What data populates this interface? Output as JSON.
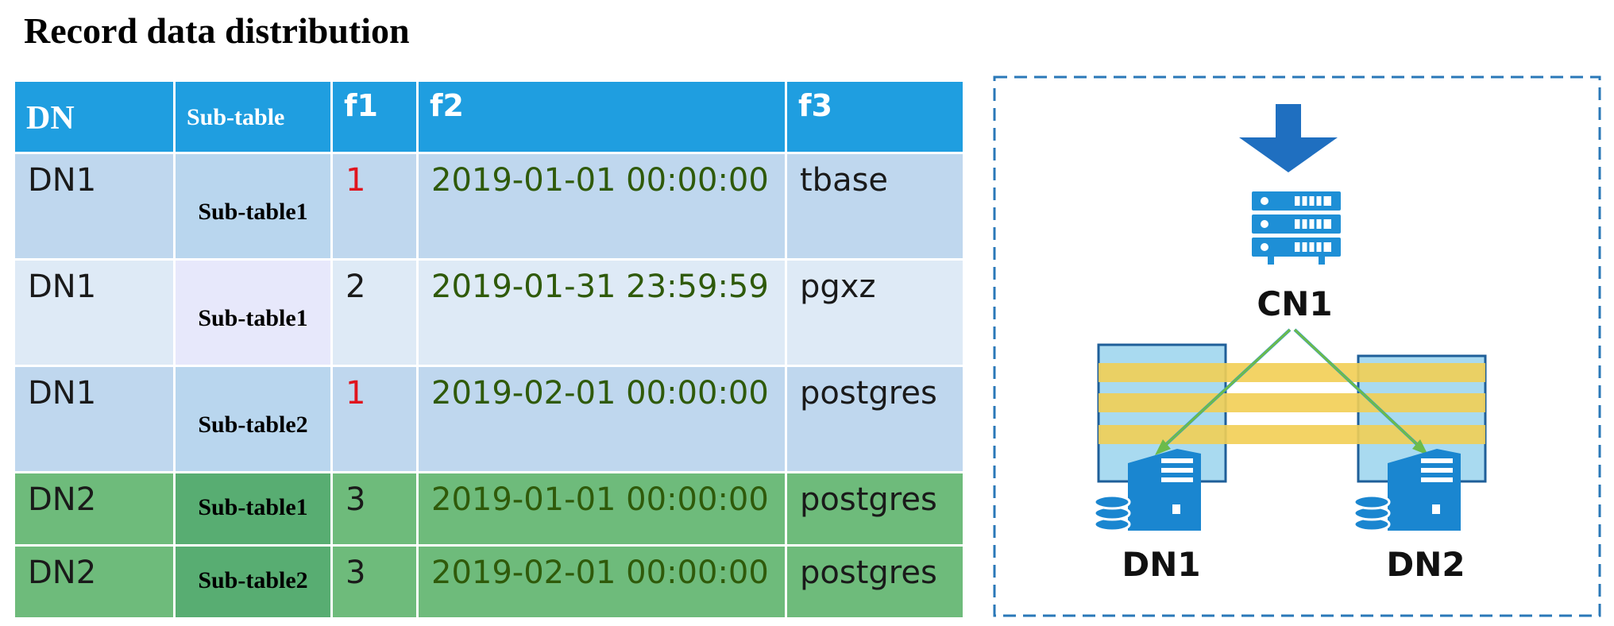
{
  "title": "Record data distribution",
  "table": {
    "headers": [
      "DN",
      "Sub-table",
      "f1",
      "f2",
      "f3"
    ],
    "rows": [
      {
        "dn": "DN1",
        "subtable": "Sub-table1",
        "f1": "1",
        "f2": "2019-01-01 00:00:00",
        "f3": "tbase"
      },
      {
        "dn": "DN1",
        "subtable": "Sub-table1",
        "f1": "2",
        "f2": "2019-01-31 23:59:59",
        "f3": "pgxz"
      },
      {
        "dn": "DN1",
        "subtable": "Sub-table2",
        "f1": "1",
        "f2": "2019-02-01 00:00:00",
        "f3": "postgres"
      },
      {
        "dn": "DN2",
        "subtable": "Sub-table1",
        "f1": "3",
        "f2": "2019-01-01 00:00:00",
        "f3": "postgres"
      },
      {
        "dn": "DN2",
        "subtable": "Sub-table2",
        "f1": "3",
        "f2": "2019-02-01 00:00:00",
        "f3": "postgres"
      }
    ]
  },
  "diagram": {
    "cn_label": "CN1",
    "dn_labels": [
      "DN1",
      "DN2"
    ]
  },
  "colors": {
    "header_blue": "#1f9ee0",
    "row_blue": "#bfd7ee",
    "row_light": "#deeaf6",
    "row_green": "#6ebb7b",
    "f1_red": "#e0141e",
    "timestamp_green": "#2f5a0a",
    "icon_blue": "#1f7ac4",
    "band_yellow": "#f2cf55"
  }
}
